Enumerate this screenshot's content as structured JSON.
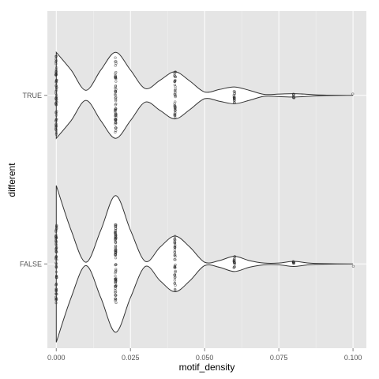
{
  "chart_data": {
    "type": "violin",
    "xlabel": "motif_density",
    "ylabel": "different",
    "xlim": [
      -0.003,
      0.1045
    ],
    "x_ticks": [
      0,
      0.025,
      0.05,
      0.075,
      0.1
    ],
    "x_tick_labels": [
      "0.000",
      "0.025",
      "0.050",
      "0.075",
      "0.100"
    ],
    "categories": [
      "FALSE",
      "TRUE"
    ],
    "grid": true,
    "background": "#e5e5e5",
    "grid_color": "#ffffff",
    "violins": [
      {
        "category": "TRUE",
        "profile": [
          {
            "x": 0.0,
            "w": 0.51
          },
          {
            "x": 0.005,
            "w": 0.3
          },
          {
            "x": 0.01,
            "w": 0.06
          },
          {
            "x": 0.015,
            "w": 0.3
          },
          {
            "x": 0.02,
            "w": 0.51
          },
          {
            "x": 0.025,
            "w": 0.3
          },
          {
            "x": 0.03,
            "w": 0.08
          },
          {
            "x": 0.035,
            "w": 0.18
          },
          {
            "x": 0.04,
            "w": 0.28
          },
          {
            "x": 0.045,
            "w": 0.17
          },
          {
            "x": 0.05,
            "w": 0.04
          },
          {
            "x": 0.055,
            "w": 0.07
          },
          {
            "x": 0.06,
            "w": 0.1
          },
          {
            "x": 0.065,
            "w": 0.06
          },
          {
            "x": 0.07,
            "w": 0.012
          },
          {
            "x": 0.075,
            "w": 0.015
          },
          {
            "x": 0.08,
            "w": 0.02
          },
          {
            "x": 0.085,
            "w": 0.012
          },
          {
            "x": 0.09,
            "w": 0.003
          },
          {
            "x": 0.1,
            "w": 0.0
          }
        ],
        "points": [
          {
            "x": 0.0,
            "count": 60
          },
          {
            "x": 0.02,
            "count": 60
          },
          {
            "x": 0.04,
            "count": 40
          },
          {
            "x": 0.06,
            "count": 16
          },
          {
            "x": 0.08,
            "count": 8
          },
          {
            "x": 0.1,
            "count": 1
          }
        ]
      },
      {
        "category": "FALSE",
        "profile": [
          {
            "x": 0.0,
            "w": 0.93
          },
          {
            "x": 0.005,
            "w": 0.4
          },
          {
            "x": 0.01,
            "w": 0.02
          },
          {
            "x": 0.015,
            "w": 0.4
          },
          {
            "x": 0.02,
            "w": 0.81
          },
          {
            "x": 0.025,
            "w": 0.4
          },
          {
            "x": 0.03,
            "w": 0.03
          },
          {
            "x": 0.035,
            "w": 0.2
          },
          {
            "x": 0.04,
            "w": 0.33
          },
          {
            "x": 0.045,
            "w": 0.2
          },
          {
            "x": 0.05,
            "w": 0.02
          },
          {
            "x": 0.055,
            "w": 0.04
          },
          {
            "x": 0.06,
            "w": 0.09
          },
          {
            "x": 0.065,
            "w": 0.04
          },
          {
            "x": 0.07,
            "w": 0.01
          },
          {
            "x": 0.075,
            "w": 0.01
          },
          {
            "x": 0.08,
            "w": 0.03
          },
          {
            "x": 0.085,
            "w": 0.01
          },
          {
            "x": 0.09,
            "w": 0.003
          },
          {
            "x": 0.1,
            "w": 0.0
          }
        ],
        "points": [
          {
            "x": 0.0,
            "count": 60
          },
          {
            "x": 0.02,
            "count": 80
          },
          {
            "x": 0.04,
            "count": 40
          },
          {
            "x": 0.06,
            "count": 16
          },
          {
            "x": 0.08,
            "count": 8
          },
          {
            "x": 0.1,
            "count": 1
          }
        ]
      }
    ]
  }
}
